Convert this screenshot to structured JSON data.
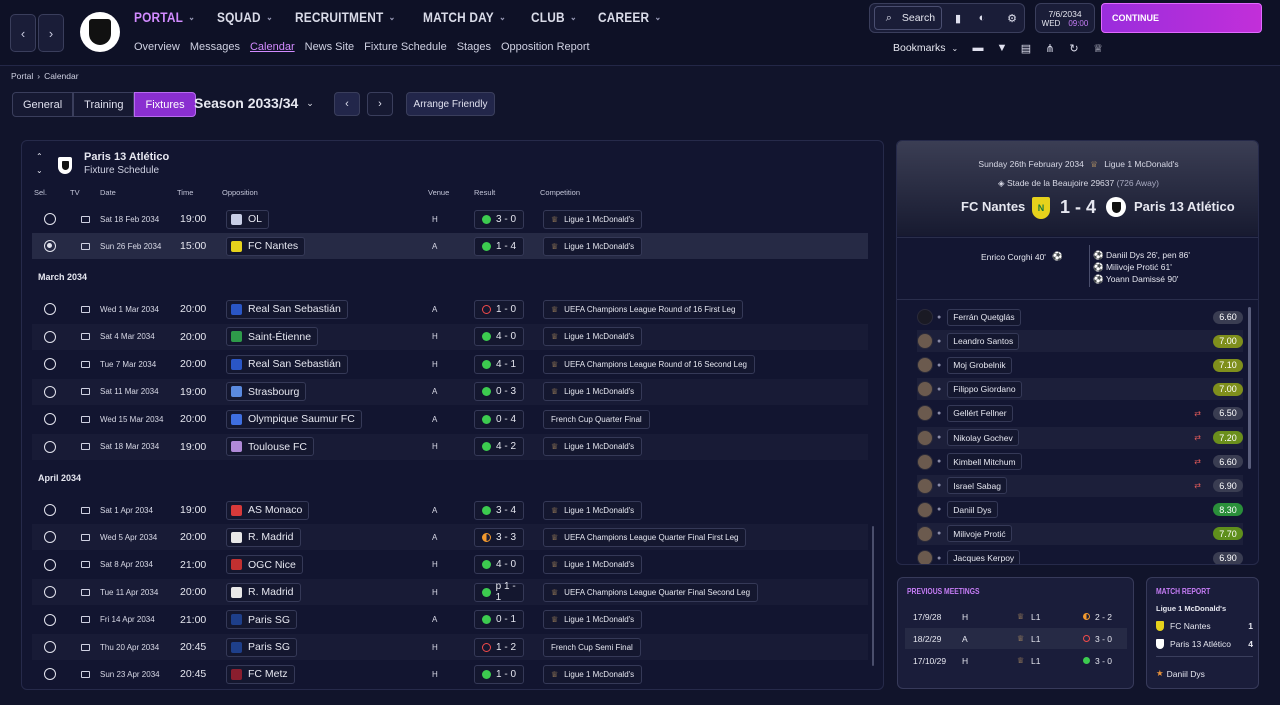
{
  "topbar": {
    "menu": [
      {
        "label": "PORTAL",
        "active": true
      },
      {
        "label": "SQUAD",
        "active": false
      },
      {
        "label": "RECRUITMENT",
        "active": false
      },
      {
        "label": "MATCH DAY",
        "active": false
      },
      {
        "label": "CLUB",
        "active": false
      },
      {
        "label": "CAREER",
        "active": false
      }
    ],
    "submenu": [
      {
        "label": "Overview",
        "active": false
      },
      {
        "label": "Messages",
        "active": false
      },
      {
        "label": "Calendar",
        "active": true
      },
      {
        "label": "News Site",
        "active": false
      },
      {
        "label": "Fixture Schedule",
        "active": false
      },
      {
        "label": "Stages",
        "active": false
      },
      {
        "label": "Opposition Report",
        "active": false
      }
    ],
    "search_label": "Search",
    "date": "7/6/2034",
    "day": "WED",
    "time": "09:00",
    "continue_label": "CONTINUE",
    "bookmarks_label": "Bookmarks"
  },
  "breadcrumb": {
    "root": "Portal",
    "current": "Calendar"
  },
  "tabs": [
    {
      "label": "General",
      "active": false
    },
    {
      "label": "Training",
      "active": false
    },
    {
      "label": "Fixtures",
      "active": true
    }
  ],
  "season_label": "Season 2033/34",
  "arrange_friendly_label": "Arrange Friendly",
  "fixtures": {
    "club": "Paris 13 Atlético",
    "subtitle": "Fixture Schedule",
    "columns": {
      "sel": "Sel.",
      "tv": "TV",
      "date": "Date",
      "time": "Time",
      "opposition": "Opposition",
      "venue": "Venue",
      "result": "Result",
      "competition": "Competition"
    },
    "months": {
      "march": "March 2034",
      "april": "April 2034"
    },
    "feb": [
      {
        "date": "Sat 18 Feb 2034",
        "time": "19:00",
        "opp": "OL",
        "venue": "H",
        "result": "3 - 0",
        "outcome": "w",
        "comp": "Ligue 1 McDonald's",
        "badge": "#c9cfe6",
        "sel": false
      },
      {
        "date": "Sun 26 Feb 2034",
        "time": "15:00",
        "opp": "FC Nantes",
        "venue": "A",
        "result": "1 - 4",
        "outcome": "w",
        "comp": "Ligue 1 McDonald's",
        "badge": "#e6d21c",
        "sel": true
      }
    ],
    "march": [
      {
        "date": "Wed 1 Mar 2034",
        "time": "20:00",
        "opp": "Real San Sebastián",
        "venue": "A",
        "result": "1 - 0",
        "outcome": "l",
        "comp": "UEFA Champions League Round of 16 First Leg",
        "badge": "#2a56c6"
      },
      {
        "date": "Sat 4 Mar 2034",
        "time": "20:00",
        "opp": "Saint-Étienne",
        "venue": "H",
        "result": "4 - 0",
        "outcome": "w",
        "comp": "Ligue 1 McDonald's",
        "badge": "#2e9b4a"
      },
      {
        "date": "Tue 7 Mar 2034",
        "time": "20:00",
        "opp": "Real San Sebastián",
        "venue": "H",
        "result": "4 - 1",
        "outcome": "w",
        "comp": "UEFA Champions League Round of 16 Second Leg",
        "badge": "#2a56c6"
      },
      {
        "date": "Sat 11 Mar 2034",
        "time": "19:00",
        "opp": "Strasbourg",
        "venue": "A",
        "result": "0 - 3",
        "outcome": "w",
        "comp": "Ligue 1 McDonald's",
        "badge": "#5a8ae0"
      },
      {
        "date": "Wed 15 Mar 2034",
        "time": "20:00",
        "opp": "Olympique Saumur FC",
        "venue": "A",
        "result": "0 - 4",
        "outcome": "w",
        "comp": "French Cup Quarter Final",
        "badge": "#3f6fe0"
      },
      {
        "date": "Sat 18 Mar 2034",
        "time": "19:00",
        "opp": "Toulouse FC",
        "venue": "H",
        "result": "4 - 2",
        "outcome": "w",
        "comp": "Ligue 1 McDonald's",
        "badge": "#b08ad8"
      }
    ],
    "april": [
      {
        "date": "Sat 1 Apr 2034",
        "time": "19:00",
        "opp": "AS Monaco",
        "venue": "A",
        "result": "3 - 4",
        "outcome": "w",
        "comp": "Ligue 1 McDonald's",
        "badge": "#d83a3a"
      },
      {
        "date": "Wed 5 Apr 2034",
        "time": "20:00",
        "opp": "R. Madrid",
        "venue": "A",
        "result": "3 - 3",
        "outcome": "d",
        "comp": "UEFA Champions League Quarter Final First Leg",
        "badge": "#e8e8e8"
      },
      {
        "date": "Sat 8 Apr 2034",
        "time": "21:00",
        "opp": "OGC Nice",
        "venue": "H",
        "result": "4 - 0",
        "outcome": "w",
        "comp": "Ligue 1 McDonald's",
        "badge": "#c23030"
      },
      {
        "date": "Tue 11 Apr 2034",
        "time": "20:00",
        "opp": "R. Madrid",
        "venue": "H",
        "result": "p 1 - 1",
        "outcome": "w",
        "comp": "UEFA Champions League Quarter Final Second Leg",
        "badge": "#e8e8e8"
      },
      {
        "date": "Fri 14 Apr 2034",
        "time": "21:00",
        "opp": "Paris SG",
        "venue": "A",
        "result": "0 - 1",
        "outcome": "w",
        "comp": "Ligue 1 McDonald's",
        "badge": "#1e3f8a"
      },
      {
        "date": "Thu 20 Apr 2034",
        "time": "20:45",
        "opp": "Paris SG",
        "venue": "H",
        "result": "1 - 2",
        "outcome": "l",
        "comp": "French Cup Semi Final",
        "badge": "#1e3f8a"
      },
      {
        "date": "Sun 23 Apr 2034",
        "time": "20:45",
        "opp": "FC Metz",
        "venue": "H",
        "result": "1 - 0",
        "outcome": "w",
        "comp": "Ligue 1 McDonald's",
        "badge": "#8a1e2e"
      }
    ]
  },
  "match": {
    "date": "Sunday 26th February 2034",
    "competition": "Ligue 1 McDonald's",
    "stadium": "Stade de la Beaujoire",
    "attendance": "29637",
    "away_count": "(726 Away)",
    "home_team": "FC Nantes",
    "away_team": "Paris 13 Atlético",
    "score": "1 - 4",
    "home_scorers": [
      "Enrico Corghi 40'"
    ],
    "away_scorers": [
      "Daniil Dys 26', pen 86'",
      "Milivoje Protić 61'",
      "Yoann Damissé 90'"
    ],
    "players": [
      {
        "name": "Ferrán Quetglás",
        "rating": "6.60",
        "color": "#3a3d52",
        "sub": false
      },
      {
        "name": "Leandro Santos",
        "rating": "7.00",
        "color": "#7f8f1c",
        "sub": false
      },
      {
        "name": "Moj Grobelnik",
        "rating": "7.10",
        "color": "#7f8f1c",
        "sub": false
      },
      {
        "name": "Filippo Giordano",
        "rating": "7.00",
        "color": "#7f8f1c",
        "sub": false
      },
      {
        "name": "Gellért Fellner",
        "rating": "6.50",
        "color": "#3a3d52",
        "sub": true
      },
      {
        "name": "Nikolay Gochev",
        "rating": "7.20",
        "color": "#6b8f1c",
        "sub": true
      },
      {
        "name": "Kimbell Mitchum",
        "rating": "6.60",
        "color": "#3a3d52",
        "sub": true
      },
      {
        "name": "Israel Sabag",
        "rating": "6.90",
        "color": "#3a3d52",
        "sub": true
      },
      {
        "name": "Daniil Dys",
        "rating": "8.30",
        "color": "#2a8f3a",
        "sub": false
      },
      {
        "name": "Milivoje Protić",
        "rating": "7.70",
        "color": "#5f8f1c",
        "sub": false
      },
      {
        "name": "Jacques Kerpoy",
        "rating": "6.90",
        "color": "#3a3d52",
        "sub": false
      }
    ]
  },
  "previous_meetings": {
    "title": "PREVIOUS MEETINGS",
    "rows": [
      {
        "date": "17/9/28",
        "venue": "H",
        "comp": "L1",
        "result": "2 - 2",
        "outcome": "d"
      },
      {
        "date": "18/2/29",
        "venue": "A",
        "comp": "L1",
        "result": "3 - 0",
        "outcome": "l"
      },
      {
        "date": "17/10/29",
        "venue": "H",
        "comp": "L1",
        "result": "3 - 0",
        "outcome": "w"
      }
    ]
  },
  "match_report": {
    "title": "MATCH REPORT",
    "competition": "Ligue 1 McDonald's",
    "home": "FC Nantes",
    "home_score": "1",
    "away": "Paris 13 Atlético",
    "away_score": "4",
    "star": "Daniil Dys"
  }
}
